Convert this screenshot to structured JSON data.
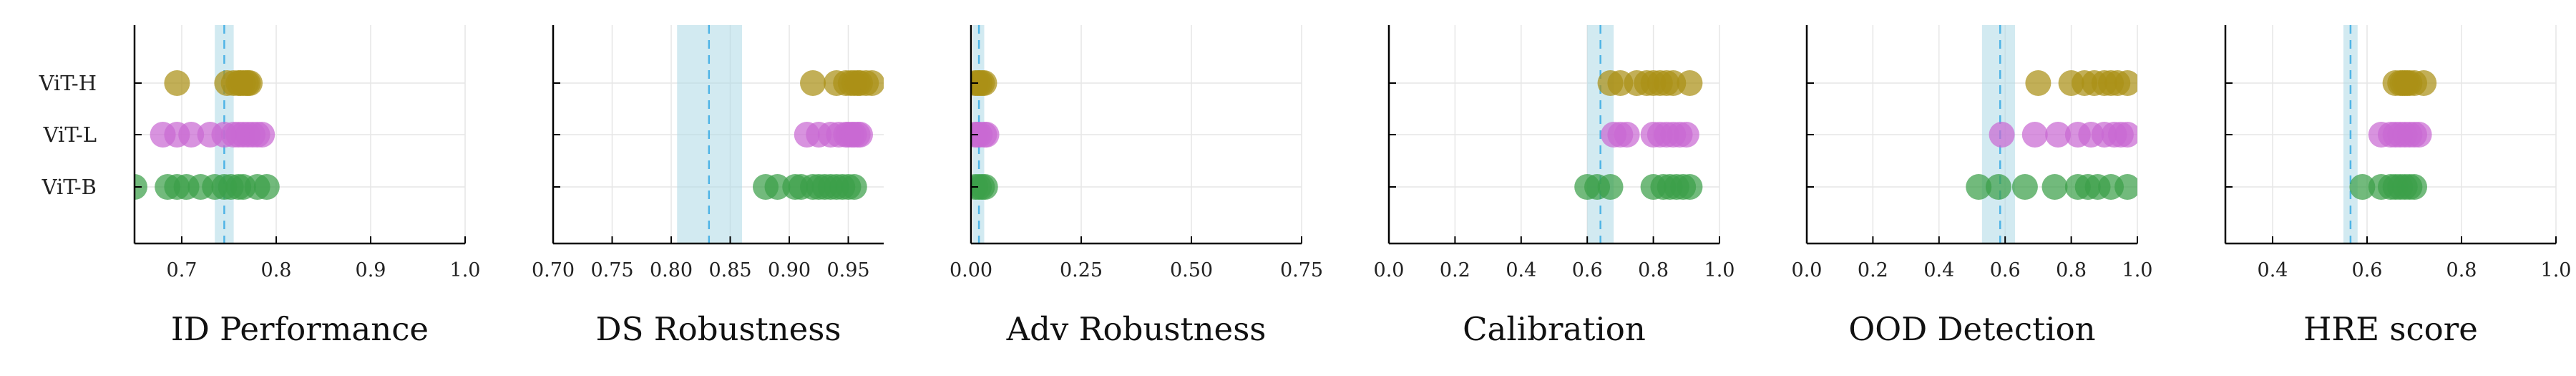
{
  "chart_data": {
    "type": "scatter",
    "rows": [
      "ViT-H",
      "ViT-L",
      "ViT-B"
    ],
    "colors": {
      "ViT-H": "#aa9016",
      "ViT-L": "#c969d3",
      "ViT-B": "#3ca04a",
      "band": "#add8e6",
      "line": "#4fb4e6"
    },
    "panels": [
      {
        "xlabel": "ID Performance",
        "xlim": [
          0.65,
          1.0
        ],
        "xticks": [
          0.7,
          0.8,
          0.9,
          1.0
        ],
        "xtick_labels": [
          "0.7",
          "0.8",
          "0.9",
          "1.0"
        ],
        "band": [
          0.735,
          0.755
        ],
        "line": 0.745,
        "series": [
          {
            "row": "ViT-H",
            "x": [
              0.695,
              0.748,
              0.755,
              0.76,
              0.762,
              0.765,
              0.768,
              0.77,
              0.772
            ]
          },
          {
            "row": "ViT-L",
            "x": [
              0.68,
              0.695,
              0.71,
              0.73,
              0.745,
              0.755,
              0.76,
              0.765,
              0.77,
              0.775,
              0.78,
              0.785
            ]
          },
          {
            "row": "ViT-B",
            "x": [
              0.65,
              0.685,
              0.695,
              0.705,
              0.72,
              0.735,
              0.745,
              0.752,
              0.76,
              0.765,
              0.78,
              0.79
            ]
          }
        ]
      },
      {
        "xlabel": "DS Robustness",
        "xlim": [
          0.7,
          0.98
        ],
        "xticks": [
          0.7,
          0.75,
          0.8,
          0.85,
          0.9,
          0.95
        ],
        "xtick_labels": [
          "0.70",
          "0.75",
          "0.80",
          "0.85",
          "0.90",
          "0.95"
        ],
        "band": [
          0.805,
          0.86
        ],
        "line": 0.832,
        "series": [
          {
            "row": "ViT-H",
            "x": [
              0.92,
              0.94,
              0.948,
              0.952,
              0.955,
              0.958,
              0.96,
              0.965,
              0.97
            ]
          },
          {
            "row": "ViT-L",
            "x": [
              0.915,
              0.925,
              0.935,
              0.942,
              0.948,
              0.95,
              0.953,
              0.955,
              0.958,
              0.96
            ]
          },
          {
            "row": "ViT-B",
            "x": [
              0.88,
              0.89,
              0.905,
              0.91,
              0.92,
              0.925,
              0.93,
              0.935,
              0.94,
              0.945,
              0.95,
              0.955
            ]
          }
        ]
      },
      {
        "xlabel": "Adv Robustness",
        "xlim": [
          0.0,
          0.75
        ],
        "xticks": [
          0.0,
          0.25,
          0.5,
          0.75
        ],
        "xtick_labels": [
          "0.00",
          "0.25",
          "0.50",
          "0.75"
        ],
        "band": [
          0.005,
          0.03
        ],
        "line": 0.018,
        "series": [
          {
            "row": "ViT-H",
            "x": [
              0.01,
              0.015,
              0.02,
              0.025,
              0.03
            ]
          },
          {
            "row": "ViT-L",
            "x": [
              0.01,
              0.015,
              0.02,
              0.03,
              0.035
            ]
          },
          {
            "row": "ViT-B",
            "x": [
              0.01,
              0.018,
              0.025,
              0.032
            ]
          }
        ]
      },
      {
        "xlabel": "Calibration",
        "xlim": [
          0.0,
          1.0
        ],
        "xticks": [
          0.0,
          0.2,
          0.4,
          0.6,
          0.8,
          1.0
        ],
        "xtick_labels": [
          "0.0",
          "0.2",
          "0.4",
          "0.6",
          "0.8",
          "1.0"
        ],
        "band": [
          0.6,
          0.68
        ],
        "line": 0.64,
        "series": [
          {
            "row": "ViT-H",
            "x": [
              0.67,
              0.7,
              0.75,
              0.78,
              0.8,
              0.82,
              0.84,
              0.86,
              0.91
            ]
          },
          {
            "row": "ViT-L",
            "x": [
              0.68,
              0.7,
              0.72,
              0.8,
              0.82,
              0.84,
              0.86,
              0.88,
              0.9
            ]
          },
          {
            "row": "ViT-B",
            "x": [
              0.6,
              0.63,
              0.67,
              0.8,
              0.83,
              0.85,
              0.87,
              0.89,
              0.91
            ]
          }
        ]
      },
      {
        "xlabel": "OOD Detection",
        "xlim": [
          0.0,
          1.0
        ],
        "xticks": [
          0.0,
          0.2,
          0.4,
          0.6,
          0.8,
          1.0
        ],
        "xtick_labels": [
          "0.0",
          "0.2",
          "0.4",
          "0.6",
          "0.8",
          "1.0"
        ],
        "band": [
          0.53,
          0.63
        ],
        "line": 0.585,
        "series": [
          {
            "row": "ViT-H",
            "x": [
              0.7,
              0.8,
              0.84,
              0.87,
              0.9,
              0.92,
              0.94,
              0.97
            ]
          },
          {
            "row": "ViT-L",
            "x": [
              0.59,
              0.69,
              0.76,
              0.82,
              0.86,
              0.9,
              0.93,
              0.95,
              0.97
            ]
          },
          {
            "row": "ViT-B",
            "x": [
              0.52,
              0.58,
              0.66,
              0.75,
              0.82,
              0.85,
              0.88,
              0.92,
              0.97
            ]
          }
        ]
      },
      {
        "xlabel": "HRE score",
        "xlim": [
          0.3,
          1.0
        ],
        "xticks": [
          0.4,
          0.6,
          0.8,
          1.0
        ],
        "xtick_labels": [
          "0.4",
          "0.6",
          "0.8",
          "1.0"
        ],
        "band": [
          0.55,
          0.58
        ],
        "line": 0.565,
        "series": [
          {
            "row": "ViT-H",
            "x": [
              0.66,
              0.67,
              0.675,
              0.68,
              0.685,
              0.69,
              0.7,
              0.72
            ]
          },
          {
            "row": "ViT-L",
            "x": [
              0.63,
              0.65,
              0.66,
              0.67,
              0.68,
              0.69,
              0.7,
              0.71
            ]
          },
          {
            "row": "ViT-B",
            "x": [
              0.59,
              0.63,
              0.65,
              0.66,
              0.67,
              0.68,
              0.69,
              0.7
            ]
          }
        ]
      }
    ]
  }
}
